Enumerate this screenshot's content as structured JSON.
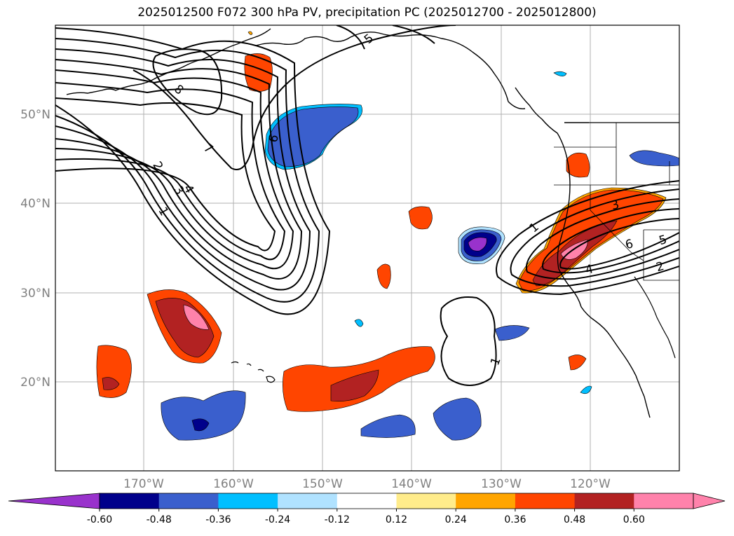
{
  "title": "2025012500 F072 300 hPa PV, precipitation PC (2025012700 - 2025012800)",
  "map": {
    "lat_labels": [
      "50°N",
      "40°N",
      "30°N",
      "20°N"
    ],
    "lon_labels": [
      "170°W",
      "160°W",
      "150°W",
      "140°W",
      "130°W",
      "120°W"
    ],
    "contour_labels": [
      "5",
      "8",
      "7",
      "6",
      "2",
      "3",
      "4",
      "1",
      "1",
      "1",
      "3",
      "6",
      "5",
      "4",
      "2"
    ]
  },
  "colorbar": {
    "tick_labels": [
      "-0.60",
      "-0.48",
      "-0.36",
      "-0.24",
      "-0.12",
      "0.12",
      "0.24",
      "0.36",
      "0.48",
      "0.60"
    ],
    "colors": [
      "#9932CC",
      "#00008B",
      "#3A5FCD",
      "#00BFFF",
      "#B0E2FF",
      "#FFFFFF",
      "#FFEC8B",
      "#FFA500",
      "#FF4500",
      "#B22222",
      "#FF82AB",
      "#FF82AB"
    ]
  }
}
